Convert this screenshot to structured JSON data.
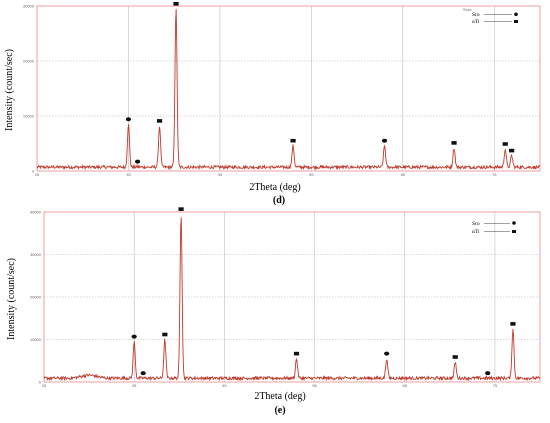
{
  "colors": {
    "trace": "#c0392b",
    "frame": "#e88a8a",
    "grid": "#b0b0b0",
    "marker": "#111111",
    "noise": "#6b8e23"
  },
  "panels": [
    {
      "label": "(d)",
      "xlabel": "2Theta (deg)",
      "ylabel": "Intensity (count/sec)",
      "legend": [
        {
          "text": "Sro",
          "marker": "circle"
        },
        {
          "text": "αTi",
          "marker": "square"
        }
      ],
      "corner_text": "Sxxx",
      "ytick_labels": [
        "0",
        "10000",
        "20000",
        "30000"
      ]
    },
    {
      "label": "(e)",
      "xlabel": "2Theta (deg)",
      "ylabel": "Intensity (count/sec)",
      "legend": [
        {
          "text": "Sro",
          "marker": "circle"
        },
        {
          "text": "αTi",
          "marker": "square"
        }
      ],
      "ytick_labels": [
        "0",
        "10000",
        "20000",
        "30000",
        "40000"
      ]
    }
  ],
  "chart_data": [
    {
      "type": "line",
      "title": "",
      "xlabel": "2Theta (deg)",
      "ylabel": "Intensity (count/sec)",
      "xlim": [
        25,
        80
      ],
      "ylim": [
        0,
        30000
      ],
      "xticks": [
        25,
        30,
        35,
        40,
        45,
        50,
        55,
        60,
        65,
        70,
        75,
        80
      ],
      "yticks": [
        0,
        10000,
        20000,
        30000
      ],
      "grid": true,
      "legend_position": "top-right",
      "baseline": 700,
      "peaks": [
        {
          "x": 35.0,
          "y": 8500,
          "phase": "Sro"
        },
        {
          "x": 36.0,
          "y": 800,
          "phase": "Sro"
        },
        {
          "x": 38.4,
          "y": 8200,
          "phase": "αTi"
        },
        {
          "x": 40.2,
          "y": 29500,
          "phase": "αTi"
        },
        {
          "x": 53.0,
          "y": 4600,
          "phase": "αTi"
        },
        {
          "x": 63.0,
          "y": 4600,
          "phase": "Sro"
        },
        {
          "x": 70.6,
          "y": 4200,
          "phase": "αTi"
        },
        {
          "x": 76.2,
          "y": 4000,
          "phase": "αTi"
        },
        {
          "x": 76.9,
          "y": 2800,
          "phase": "αTi"
        }
      ],
      "series": [
        {
          "name": "",
          "kind": "XRD pattern"
        }
      ]
    },
    {
      "type": "line",
      "title": "",
      "xlabel": "2Theta (deg)",
      "ylabel": "Intensity (count/sec)",
      "xlim": [
        25,
        80
      ],
      "ylim": [
        0,
        40000
      ],
      "xticks": [
        25,
        30,
        35,
        40,
        45,
        50,
        55,
        60,
        65,
        70,
        75,
        80
      ],
      "yticks": [
        0,
        10000,
        20000,
        30000,
        40000
      ],
      "grid": true,
      "legend_position": "top-right",
      "baseline": 900,
      "peaks": [
        {
          "x": 35.0,
          "y": 9500,
          "phase": "Sro"
        },
        {
          "x": 36.0,
          "y": 900,
          "phase": "Sro"
        },
        {
          "x": 38.4,
          "y": 10000,
          "phase": "αTi"
        },
        {
          "x": 40.2,
          "y": 39500,
          "phase": "αTi"
        },
        {
          "x": 53.0,
          "y": 5500,
          "phase": "αTi"
        },
        {
          "x": 63.0,
          "y": 5500,
          "phase": "Sro"
        },
        {
          "x": 70.6,
          "y": 4700,
          "phase": "αTi"
        },
        {
          "x": 74.2,
          "y": 900,
          "phase": "Sro"
        },
        {
          "x": 77.0,
          "y": 12500,
          "phase": "αTi"
        }
      ],
      "series": [
        {
          "name": "",
          "kind": "XRD pattern"
        }
      ]
    }
  ]
}
